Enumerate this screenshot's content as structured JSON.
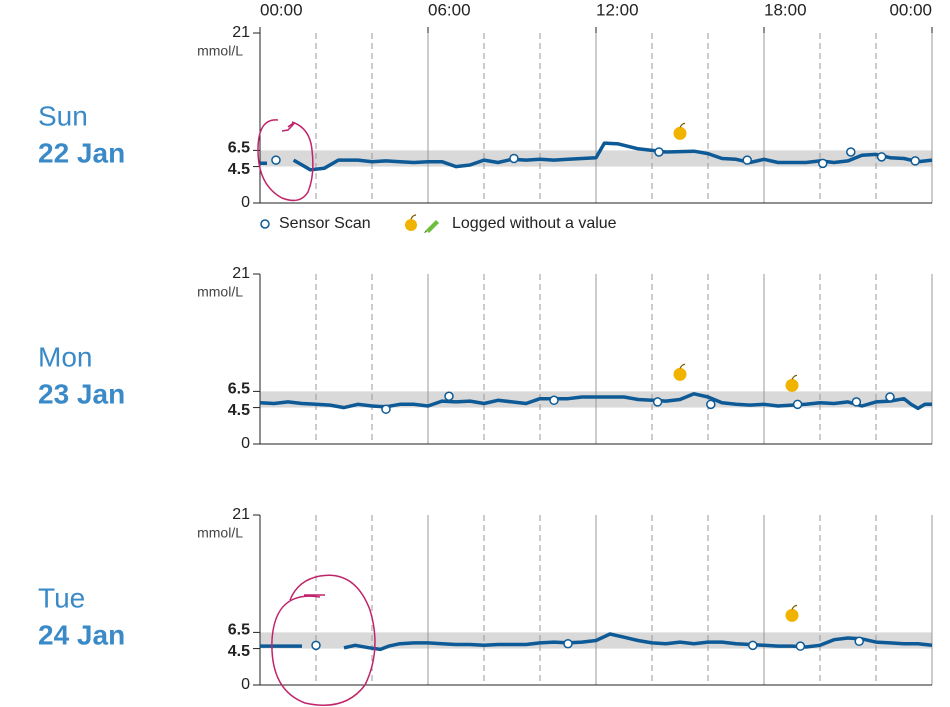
{
  "chart_data": [
    {
      "type": "line",
      "day": "Sun",
      "date": "22 Jan",
      "xlim": [
        0,
        24
      ],
      "xticks": [
        {
          "value": 0,
          "label": "00:00"
        },
        {
          "value": 6,
          "label": "06:00"
        },
        {
          "value": 12,
          "label": "12:00"
        },
        {
          "value": 18,
          "label": "18:00"
        },
        {
          "value": 24,
          "label": "00:00"
        }
      ],
      "minor_xticks": [
        2,
        4,
        8,
        10,
        14,
        16,
        20,
        22
      ],
      "ylim": [
        0,
        21
      ],
      "yticks": [
        0,
        4.5,
        6.5,
        21
      ],
      "ylabel": "mmol/L",
      "target_range": [
        4.5,
        6.5
      ],
      "line": {
        "color": "#0d5a96",
        "x": [
          0,
          0.25,
          0.7,
          1.2,
          1.8,
          2.3,
          2.8,
          3.5,
          4,
          4.5,
          5,
          5.5,
          6,
          6.5,
          7,
          7.5,
          8,
          8.5,
          9,
          9.5,
          10,
          10.5,
          11,
          11.5,
          12,
          12.3,
          12.8,
          13.5,
          14.5,
          15.5,
          16,
          16.5,
          17,
          17.5,
          18,
          18.5,
          19,
          19.5,
          20,
          20.5,
          21,
          21.5,
          22,
          22.5,
          23,
          23.5,
          24
        ],
        "values": [
          4.9,
          4.9,
          null,
          5.3,
          4.1,
          4.3,
          5.3,
          5.3,
          5.1,
          5.2,
          5.1,
          5.0,
          5.1,
          5.1,
          4.5,
          4.7,
          5.3,
          5.0,
          5.4,
          5.3,
          5.4,
          5.3,
          5.4,
          5.5,
          5.6,
          7.4,
          7.3,
          6.7,
          6.3,
          6.4,
          6.1,
          5.5,
          5.4,
          5.0,
          5.4,
          5.0,
          5.0,
          5.0,
          5.2,
          5.0,
          5.2,
          5.9,
          6.0,
          5.6,
          5.5,
          5.1,
          5.3
        ]
      },
      "scans": {
        "x": [
          0.57,
          9.07,
          14.25,
          17.4,
          20.1,
          21.1,
          22.2,
          23.4
        ],
        "values": [
          5.3,
          5.5,
          6.3,
          5.3,
          4.9,
          6.3,
          5.7,
          5.2
        ]
      },
      "food_x": [
        15.0
      ],
      "legend": [
        {
          "label": "Sensor Scan"
        },
        {
          "label": "Logged without a value"
        }
      ]
    },
    {
      "type": "line",
      "day": "Mon",
      "date": "23 Jan",
      "xlim": [
        0,
        24
      ],
      "xticks": [
        0,
        6,
        12,
        18,
        24
      ],
      "minor_xticks": [
        2,
        4,
        8,
        10,
        14,
        16,
        20,
        22
      ],
      "ylim": [
        0,
        21
      ],
      "yticks": [
        0,
        4.5,
        6.5,
        21
      ],
      "ylabel": "mmol/L",
      "target_range": [
        4.5,
        6.5
      ],
      "line": {
        "color": "#0d5a96",
        "x": [
          0,
          0.5,
          1,
          1.5,
          2,
          2.5,
          3,
          3.5,
          4,
          4.5,
          5,
          5.5,
          6,
          6.5,
          7,
          7.5,
          8,
          8.5,
          9,
          9.5,
          10,
          10.5,
          11,
          11.5,
          12,
          12.5,
          13,
          13.5,
          14,
          14.5,
          15,
          15.5,
          16,
          16.5,
          17,
          17.5,
          18,
          18.5,
          19,
          19.5,
          20,
          20.5,
          21,
          21.5,
          22,
          22.5,
          23,
          23.25,
          23.5,
          23.75,
          24
        ],
        "values": [
          5.1,
          5.0,
          5.2,
          5.0,
          4.9,
          4.8,
          4.5,
          4.9,
          4.7,
          4.6,
          4.9,
          4.9,
          4.7,
          5.3,
          5.2,
          5.3,
          5.0,
          5.4,
          5.2,
          5.0,
          5.6,
          5.6,
          5.6,
          5.8,
          5.8,
          5.8,
          5.8,
          5.5,
          5.4,
          5.3,
          5.5,
          6.2,
          5.8,
          5.1,
          4.9,
          4.8,
          4.9,
          4.7,
          4.8,
          4.9,
          5.1,
          5.0,
          5.2,
          4.7,
          5.2,
          5.3,
          5.6,
          4.9,
          4.4,
          4.9,
          4.9
        ]
      },
      "scans": {
        "x": [
          4.5,
          6.75,
          10.5,
          14.2,
          16.1,
          19.2,
          21.3,
          22.5
        ],
        "values": [
          4.3,
          5.9,
          5.4,
          5.2,
          4.9,
          4.9,
          5.2,
          5.8
        ]
      },
      "food_x": [
        15.0,
        19.0
      ]
    },
    {
      "type": "line",
      "day": "Tue",
      "date": "24 Jan",
      "xlim": [
        0,
        24
      ],
      "xticks": [
        0,
        6,
        12,
        18,
        24
      ],
      "minor_xticks": [
        2,
        4,
        8,
        10,
        14,
        16,
        20,
        22
      ],
      "ylim": [
        0,
        21
      ],
      "yticks": [
        0,
        4.5,
        6.5,
        21
      ],
      "ylabel": "mmol/L",
      "target_range": [
        4.5,
        6.5
      ],
      "line": {
        "color": "#0d5a96",
        "x": [
          0,
          0.5,
          1,
          1.5,
          2,
          3.0,
          3.4,
          3.9,
          4.3,
          4.6,
          5,
          5.5,
          6,
          6.5,
          7,
          7.5,
          8,
          8.5,
          9,
          9.5,
          10,
          10.5,
          11,
          11.5,
          12,
          12.5,
          13,
          13.5,
          14,
          14.5,
          15,
          15.5,
          16,
          16.5,
          17,
          17.5,
          18,
          18.5,
          19,
          19.5,
          20,
          20.5,
          21,
          21.5,
          22,
          22.5,
          23,
          23.5,
          24
        ],
        "values": [
          4.8,
          4.8,
          4.8,
          4.8,
          null,
          4.6,
          4.9,
          4.6,
          4.4,
          4.8,
          5.1,
          5.2,
          5.2,
          5.1,
          5.0,
          5.0,
          4.9,
          5.0,
          5.0,
          5.0,
          5.2,
          5.3,
          5.2,
          5.3,
          5.5,
          6.3,
          5.9,
          5.5,
          5.2,
          5.1,
          5.3,
          5.1,
          5.3,
          5.3,
          5.1,
          5.0,
          4.9,
          4.8,
          4.8,
          4.7,
          4.9,
          5.6,
          5.8,
          5.7,
          5.3,
          5.2,
          5.1,
          5.1,
          4.9
        ]
      },
      "scans": {
        "x": [
          2.0,
          11.0,
          17.6,
          19.3,
          21.4
        ],
        "values": [
          4.9,
          5.1,
          4.9,
          4.8,
          5.4
        ]
      },
      "food_x": [
        19.0
      ]
    }
  ]
}
